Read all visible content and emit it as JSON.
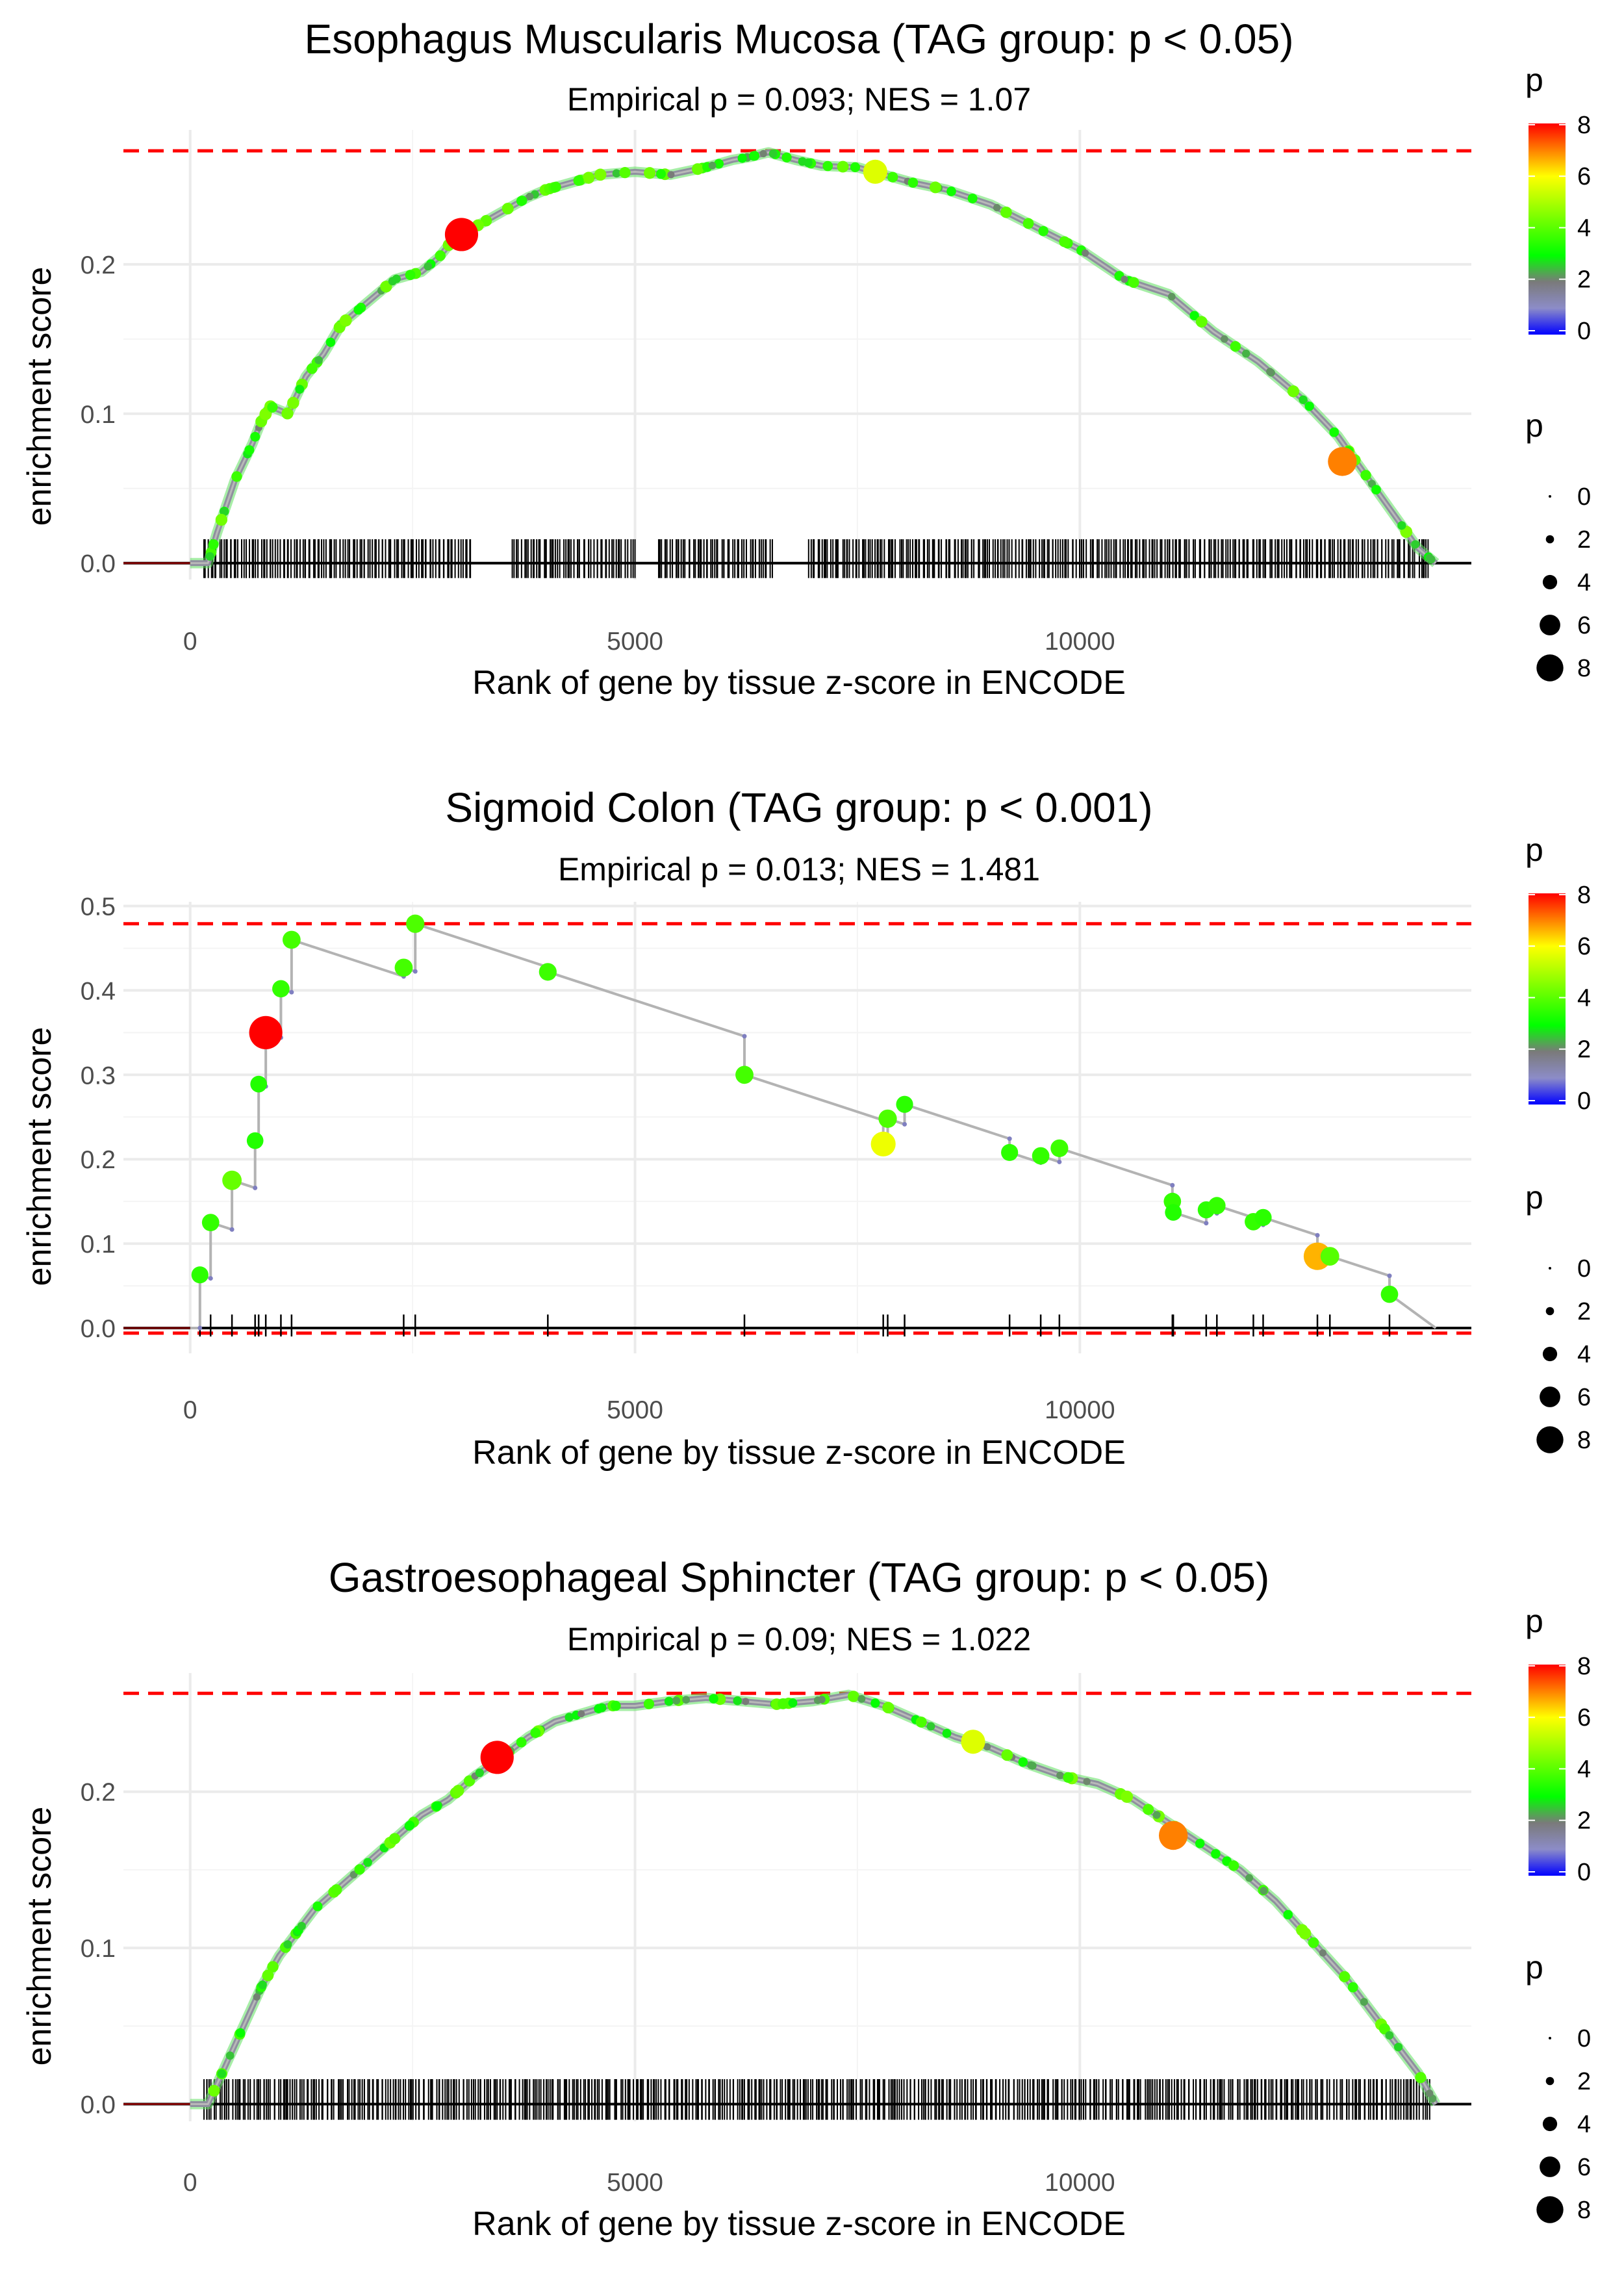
{
  "colors": {
    "refline": "#ff0000",
    "curve": "#b3b3b3",
    "baseline": "#000000",
    "gradient": [
      "#0000ff",
      "#8c8cc8",
      "#7a7a7a",
      "#00ff00",
      "#ffff00",
      "#ff0000"
    ],
    "gradient_stops": [
      0,
      1,
      2,
      3,
      6,
      8
    ]
  },
  "legend": {
    "color": {
      "title": "p",
      "labels": [
        "8",
        "6",
        "4",
        "2",
        "0"
      ]
    },
    "size": {
      "title": "p",
      "labels": [
        "0",
        "2",
        "4",
        "6",
        "8"
      ]
    }
  },
  "chart_data": [
    {
      "type": "line",
      "title": "Esophagus Muscularis Mucosa (TAG group: p < 0.05)",
      "subtitle": "Empirical p = 0.093; NES = 1.07",
      "xlabel": "Rank of gene by tissue z-score in ENCODE",
      "ylabel": "enrichment score",
      "xlim": [
        -750,
        14400
      ],
      "ylim": [
        -0.011,
        0.29
      ],
      "xticks": [
        0,
        5000,
        10000
      ],
      "xtick_labels": [
        "0",
        "5000",
        "10000"
      ],
      "yticks": [
        0.0,
        0.1,
        0.2
      ],
      "ytick_labels": [
        "0.0",
        "0.1",
        "0.2"
      ],
      "max_es": 0.276,
      "min_es": 0,
      "curve_kind": "dense",
      "x": [
        0,
        200,
        300,
        500,
        700,
        800,
        900,
        1100,
        1300,
        1500,
        1700,
        2000,
        2300,
        2600,
        2800,
        3000,
        3200,
        3500,
        3800,
        4000,
        4300,
        4600,
        5000,
        5400,
        5800,
        6100,
        6300,
        6500,
        6800,
        7100,
        7500,
        7800,
        8100,
        8500,
        9000,
        9500,
        10000,
        10500,
        11000,
        11500,
        12000,
        12500,
        12900,
        13200,
        13500,
        13800,
        14000
      ],
      "y": [
        0,
        0,
        0.02,
        0.055,
        0.08,
        0.095,
        0.105,
        0.1,
        0.125,
        0.14,
        0.16,
        0.175,
        0.19,
        0.195,
        0.205,
        0.22,
        0.225,
        0.235,
        0.245,
        0.25,
        0.255,
        0.26,
        0.262,
        0.26,
        0.265,
        0.27,
        0.272,
        0.275,
        0.27,
        0.266,
        0.265,
        0.26,
        0.255,
        0.25,
        0.24,
        0.225,
        0.21,
        0.19,
        0.18,
        0.155,
        0.135,
        0.11,
        0.085,
        0.06,
        0.035,
        0.01,
        0
      ],
      "highlights": [
        {
          "x": 3050,
          "y": 0.22,
          "p": 8.3
        },
        {
          "x": 7700,
          "y": 0.262,
          "p": 5.6
        },
        {
          "x": 12950,
          "y": 0.068,
          "p": 7.0
        }
      ],
      "hits": {
        "count": 560,
        "from": 150,
        "to": 13950,
        "gaps": [
          [
            3150,
            3600
          ],
          [
            5000,
            5250
          ],
          [
            6550,
            6950
          ]
        ]
      }
    },
    {
      "type": "line",
      "title": "Sigmoid Colon (TAG group: p < 0.001)",
      "subtitle": "Empirical p = 0.013; NES = 1.481",
      "xlabel": "Rank of gene by tissue z-score in ENCODE",
      "ylabel": "enrichment score",
      "xlim": [
        -750,
        14400
      ],
      "ylim": [
        -0.03,
        0.505
      ],
      "xticks": [
        0,
        5000,
        10000
      ],
      "xtick_labels": [
        "0",
        "5000",
        "10000"
      ],
      "yticks": [
        0.0,
        0.1,
        0.2,
        0.3,
        0.4,
        0.5
      ],
      "ytick_labels": [
        "0.0",
        "0.1",
        "0.2",
        "0.3",
        "0.4",
        "0.5"
      ],
      "max_es": 0.479,
      "min_es": -0.006,
      "curve_kind": "step",
      "start": 0,
      "end_x": 14000,
      "decline_per_rank": 3.45e-05,
      "hits": [
        {
          "x": 110,
          "y": 0.063,
          "p": 3.5
        },
        {
          "x": 230,
          "y": 0.125,
          "p": 3.6
        },
        {
          "x": 470,
          "y": 0.175,
          "p": 4.2
        },
        {
          "x": 730,
          "y": 0.222,
          "p": 3.4
        },
        {
          "x": 770,
          "y": 0.289,
          "p": 3.4
        },
        {
          "x": 850,
          "y": 0.35,
          "p": 8.3
        },
        {
          "x": 1020,
          "y": 0.402,
          "p": 3.6
        },
        {
          "x": 1140,
          "y": 0.46,
          "p": 3.8
        },
        {
          "x": 2400,
          "y": 0.427,
          "p": 3.8
        },
        {
          "x": 2530,
          "y": 0.479,
          "p": 3.9
        },
        {
          "x": 4020,
          "y": 0.422,
          "p": 3.7
        },
        {
          "x": 6230,
          "y": 0.3,
          "p": 3.8
        },
        {
          "x": 7790,
          "y": 0.218,
          "p": 5.8
        },
        {
          "x": 7840,
          "y": 0.248,
          "p": 3.9
        },
        {
          "x": 8030,
          "y": 0.265,
          "p": 3.5
        },
        {
          "x": 9210,
          "y": 0.208,
          "p": 3.5
        },
        {
          "x": 9560,
          "y": 0.204,
          "p": 3.6
        },
        {
          "x": 9770,
          "y": 0.213,
          "p": 3.7
        },
        {
          "x": 11040,
          "y": 0.15,
          "p": 3.6
        },
        {
          "x": 11050,
          "y": 0.137,
          "p": 3.4
        },
        {
          "x": 11420,
          "y": 0.14,
          "p": 3.5
        },
        {
          "x": 11540,
          "y": 0.145,
          "p": 3.6
        },
        {
          "x": 11950,
          "y": 0.126,
          "p": 3.6
        },
        {
          "x": 12060,
          "y": 0.131,
          "p": 3.5
        },
        {
          "x": 12670,
          "y": 0.085,
          "p": 6.6
        },
        {
          "x": 12810,
          "y": 0.085,
          "p": 4.0
        },
        {
          "x": 13480,
          "y": 0.04,
          "p": 3.6
        }
      ]
    },
    {
      "type": "line",
      "title": "Gastroesophageal Sphincter (TAG group: p < 0.05)",
      "subtitle": "Empirical p = 0.09; NES = 1.022",
      "xlabel": "Rank of gene by tissue z-score in ENCODE",
      "ylabel": "enrichment score",
      "xlim": [
        -750,
        14400
      ],
      "ylim": [
        -0.011,
        0.276
      ],
      "xticks": [
        0,
        5000,
        10000
      ],
      "xtick_labels": [
        "0",
        "5000",
        "10000"
      ],
      "yticks": [
        0.0,
        0.1,
        0.2
      ],
      "ytick_labels": [
        "0.0",
        "0.1",
        "0.2"
      ],
      "max_es": 0.263,
      "min_es": 0,
      "curve_kind": "dense",
      "x": [
        0,
        200,
        400,
        600,
        800,
        1000,
        1200,
        1400,
        1700,
        2000,
        2300,
        2600,
        2900,
        3200,
        3500,
        3800,
        4100,
        4400,
        4700,
        5000,
        5400,
        5800,
        6200,
        6600,
        7000,
        7400,
        7800,
        8200,
        8600,
        9000,
        9400,
        9800,
        10200,
        10600,
        11000,
        11400,
        11800,
        12200,
        12600,
        13000,
        13400,
        13800,
        14000
      ],
      "y": [
        0,
        0,
        0.025,
        0.05,
        0.075,
        0.095,
        0.11,
        0.125,
        0.14,
        0.155,
        0.17,
        0.185,
        0.195,
        0.21,
        0.222,
        0.235,
        0.245,
        0.25,
        0.255,
        0.255,
        0.258,
        0.26,
        0.258,
        0.256,
        0.258,
        0.262,
        0.255,
        0.245,
        0.235,
        0.228,
        0.218,
        0.21,
        0.205,
        0.195,
        0.18,
        0.165,
        0.15,
        0.13,
        0.105,
        0.08,
        0.05,
        0.02,
        0
      ],
      "highlights": [
        {
          "x": 3450,
          "y": 0.222,
          "p": 8.3
        },
        {
          "x": 8800,
          "y": 0.232,
          "p": 5.6
        },
        {
          "x": 11050,
          "y": 0.172,
          "p": 7.0
        }
      ],
      "hits": {
        "count": 560,
        "from": 150,
        "to": 13950,
        "gaps": []
      }
    }
  ]
}
